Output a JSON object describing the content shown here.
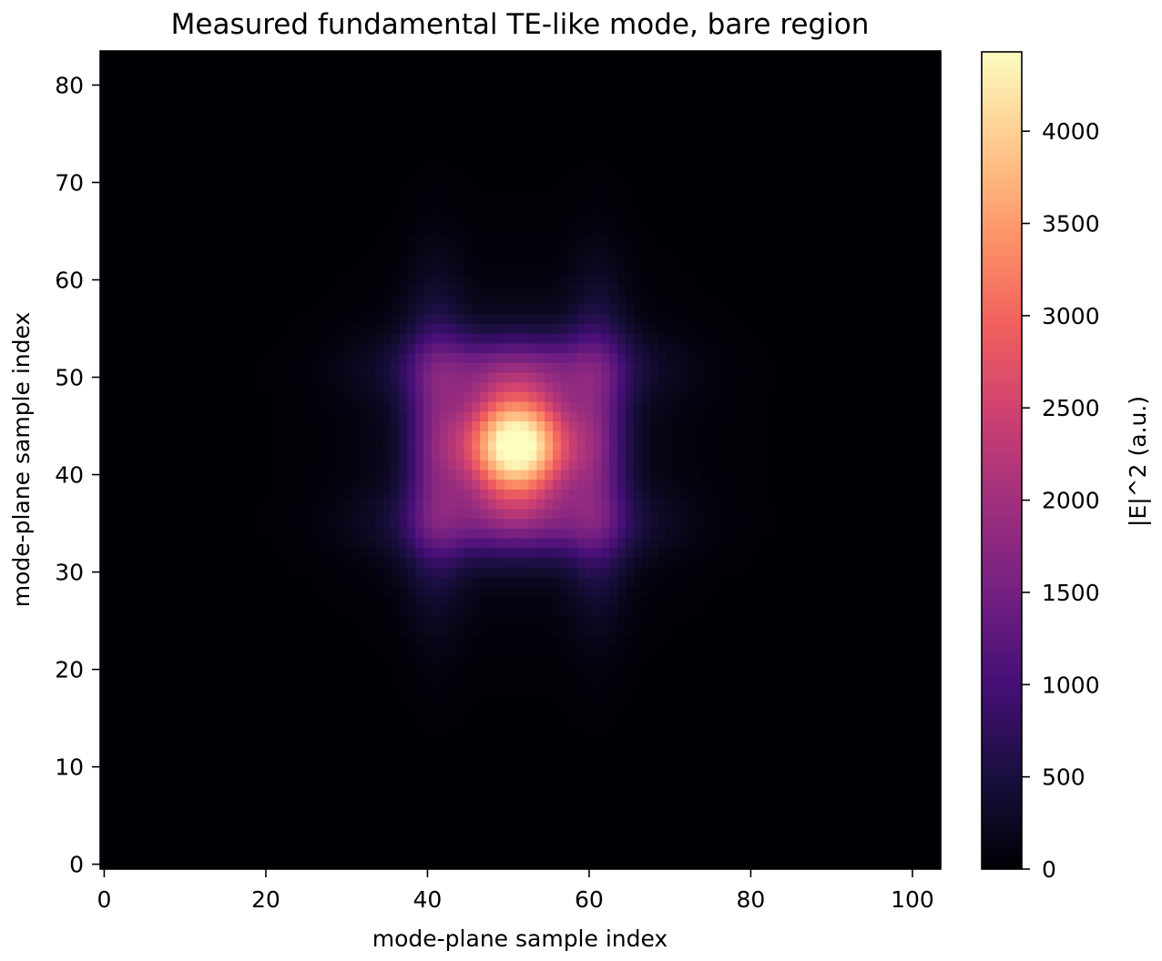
{
  "chart_data": {
    "type": "heatmap",
    "title": "Measured fundamental TE-like mode, bare region",
    "xlabel": "mode-plane sample index",
    "ylabel": "mode-plane sample index",
    "colorbar_label": "|E|^2 (a.u.)",
    "colormap": "magma",
    "grid_shape": {
      "rows": 84,
      "cols": 104
    },
    "xlim": [
      -0.5,
      103.5
    ],
    "ylim": [
      -0.5,
      83.5
    ],
    "x_ticks": [
      0,
      20,
      40,
      60,
      80,
      100
    ],
    "x_tick_labels": [
      "0",
      "20",
      "40",
      "60",
      "80",
      "100"
    ],
    "y_ticks": [
      0,
      10,
      20,
      30,
      40,
      50,
      60,
      70,
      80
    ],
    "y_tick_labels": [
      "0",
      "10",
      "20",
      "30",
      "40",
      "50",
      "60",
      "70",
      "80"
    ],
    "color_range": [
      0,
      4430
    ],
    "colorbar_ticks": [
      0,
      500,
      1000,
      1500,
      2000,
      2500,
      3000,
      3500,
      4000
    ],
    "colorbar_tick_labels": [
      "0",
      "500",
      "1000",
      "1500",
      "2000",
      "2500",
      "3000",
      "3500",
      "4000"
    ],
    "mode": {
      "peak_value": 4430,
      "center_x": 51,
      "center_y": 43,
      "core_sigma_x": 4.8,
      "core_sigma_y": 4.0,
      "side_lobe_offset_x": 10,
      "side_lobe_offset_y": 8,
      "side_lobe_value": 1050,
      "side_lobe_sigma_along": 10,
      "side_lobe_sigma_across": 2.6,
      "halo_sigma_x": 12,
      "halo_sigma_y": 10,
      "halo_value": 380
    }
  },
  "colors": {
    "background": "#ffffff",
    "axis": "#000000",
    "magma_stops": [
      "#000004",
      "#180f3d",
      "#440f76",
      "#721f81",
      "#9e2f7f",
      "#cd4071",
      "#f1605d",
      "#fd9668",
      "#feca8d",
      "#fcfdbf"
    ]
  }
}
